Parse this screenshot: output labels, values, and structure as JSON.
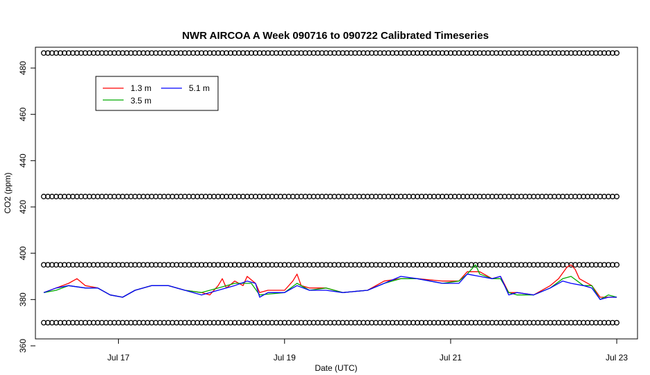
{
  "chart_data": {
    "type": "line",
    "title": "NWR AIRCOA A  Week 090716 to 090722  Calibrated Timeseries",
    "xlabel": "Date (UTC)",
    "ylabel": "CO2 (ppm)",
    "xlim": [
      16.0,
      23.25
    ],
    "ylim": [
      363,
      489
    ],
    "x_tick_values": [
      17,
      19,
      21,
      23
    ],
    "x_tick_labels": [
      "Jul 17",
      "Jul 19",
      "Jul 21",
      "Jul 23"
    ],
    "y_ticks": [
      360,
      380,
      400,
      420,
      440,
      460,
      480
    ],
    "grid": false,
    "legend_position": "top-left",
    "legend": [
      {
        "label": "1.3 m",
        "color": "#ff0000"
      },
      {
        "label": "3.5 m",
        "color": "#00aa00"
      },
      {
        "label": "5.1 m",
        "color": "#0000ff"
      }
    ],
    "series": [
      {
        "name": "1.3 m",
        "color": "#ff0000",
        "points": [
          [
            16.1,
            383
          ],
          [
            16.25,
            385
          ],
          [
            16.4,
            387
          ],
          [
            16.5,
            389
          ],
          [
            16.6,
            386
          ],
          [
            16.75,
            385
          ],
          [
            16.9,
            382
          ],
          [
            17.05,
            381
          ],
          [
            17.2,
            384
          ],
          [
            17.4,
            386
          ],
          [
            17.6,
            386
          ],
          [
            17.8,
            384
          ],
          [
            18.0,
            383
          ],
          [
            18.1,
            382
          ],
          [
            18.2,
            386
          ],
          [
            18.25,
            389
          ],
          [
            18.3,
            385
          ],
          [
            18.4,
            388
          ],
          [
            18.5,
            386
          ],
          [
            18.55,
            390
          ],
          [
            18.65,
            387
          ],
          [
            18.7,
            383
          ],
          [
            18.8,
            384
          ],
          [
            19.0,
            384
          ],
          [
            19.1,
            388
          ],
          [
            19.15,
            391
          ],
          [
            19.2,
            386
          ],
          [
            19.3,
            385
          ],
          [
            19.5,
            385
          ],
          [
            19.7,
            383
          ],
          [
            20.0,
            384
          ],
          [
            20.2,
            388
          ],
          [
            20.4,
            389
          ],
          [
            20.6,
            389
          ],
          [
            20.9,
            388
          ],
          [
            21.1,
            388
          ],
          [
            21.2,
            392
          ],
          [
            21.35,
            392
          ],
          [
            21.5,
            389
          ],
          [
            21.6,
            390
          ],
          [
            21.7,
            383
          ],
          [
            21.8,
            383
          ],
          [
            22.0,
            382
          ],
          [
            22.2,
            386
          ],
          [
            22.3,
            389
          ],
          [
            22.4,
            394
          ],
          [
            22.45,
            395
          ],
          [
            22.5,
            393
          ],
          [
            22.55,
            389
          ],
          [
            22.6,
            388
          ],
          [
            22.7,
            386
          ],
          [
            22.8,
            381
          ],
          [
            22.9,
            381
          ],
          [
            23.0,
            381
          ]
        ]
      },
      {
        "name": "3.5 m",
        "color": "#00aa00",
        "points": [
          [
            16.1,
            383
          ],
          [
            16.25,
            384
          ],
          [
            16.4,
            386
          ],
          [
            16.6,
            385
          ],
          [
            16.75,
            385
          ],
          [
            16.9,
            382
          ],
          [
            17.05,
            381
          ],
          [
            17.2,
            384
          ],
          [
            17.4,
            386
          ],
          [
            17.6,
            386
          ],
          [
            17.8,
            384
          ],
          [
            18.0,
            383
          ],
          [
            18.2,
            385
          ],
          [
            18.4,
            387
          ],
          [
            18.6,
            387
          ],
          [
            18.7,
            382
          ],
          [
            19.0,
            383
          ],
          [
            19.15,
            387
          ],
          [
            19.3,
            384
          ],
          [
            19.5,
            385
          ],
          [
            19.7,
            383
          ],
          [
            20.0,
            384
          ],
          [
            20.2,
            387
          ],
          [
            20.4,
            389
          ],
          [
            20.6,
            389
          ],
          [
            20.9,
            387
          ],
          [
            21.1,
            388
          ],
          [
            21.2,
            391
          ],
          [
            21.3,
            395
          ],
          [
            21.35,
            391
          ],
          [
            21.5,
            389
          ],
          [
            21.6,
            389
          ],
          [
            21.7,
            383
          ],
          [
            21.8,
            382
          ],
          [
            22.0,
            382
          ],
          [
            22.2,
            385
          ],
          [
            22.35,
            389
          ],
          [
            22.45,
            390
          ],
          [
            22.6,
            386
          ],
          [
            22.7,
            386
          ],
          [
            22.8,
            380
          ],
          [
            22.9,
            382
          ],
          [
            23.0,
            381
          ]
        ]
      },
      {
        "name": "5.1 m",
        "color": "#0000ff",
        "points": [
          [
            16.1,
            383
          ],
          [
            16.25,
            385
          ],
          [
            16.4,
            386
          ],
          [
            16.6,
            385
          ],
          [
            16.75,
            385
          ],
          [
            16.9,
            382
          ],
          [
            17.05,
            381
          ],
          [
            17.2,
            384
          ],
          [
            17.4,
            386
          ],
          [
            17.6,
            386
          ],
          [
            17.8,
            384
          ],
          [
            18.0,
            382
          ],
          [
            18.2,
            384
          ],
          [
            18.4,
            386
          ],
          [
            18.55,
            388
          ],
          [
            18.65,
            387
          ],
          [
            18.7,
            381
          ],
          [
            18.8,
            383
          ],
          [
            19.0,
            383
          ],
          [
            19.15,
            386
          ],
          [
            19.3,
            384
          ],
          [
            19.5,
            384
          ],
          [
            19.7,
            383
          ],
          [
            20.0,
            384
          ],
          [
            20.2,
            387
          ],
          [
            20.4,
            390
          ],
          [
            20.6,
            389
          ],
          [
            20.9,
            387
          ],
          [
            21.1,
            387
          ],
          [
            21.2,
            391
          ],
          [
            21.35,
            390
          ],
          [
            21.5,
            389
          ],
          [
            21.6,
            390
          ],
          [
            21.7,
            382
          ],
          [
            21.8,
            383
          ],
          [
            22.0,
            382
          ],
          [
            22.2,
            385
          ],
          [
            22.35,
            388
          ],
          [
            22.45,
            387
          ],
          [
            22.6,
            386
          ],
          [
            22.7,
            385
          ],
          [
            22.8,
            380
          ],
          [
            22.9,
            381
          ],
          [
            23.0,
            381
          ]
        ]
      }
    ],
    "reference_markers": {
      "levels": [
        370,
        395,
        424.5,
        486.5
      ],
      "x_start": 16.1,
      "x_end": 23.0,
      "step": 0.05,
      "symbol": "open-circle"
    }
  }
}
